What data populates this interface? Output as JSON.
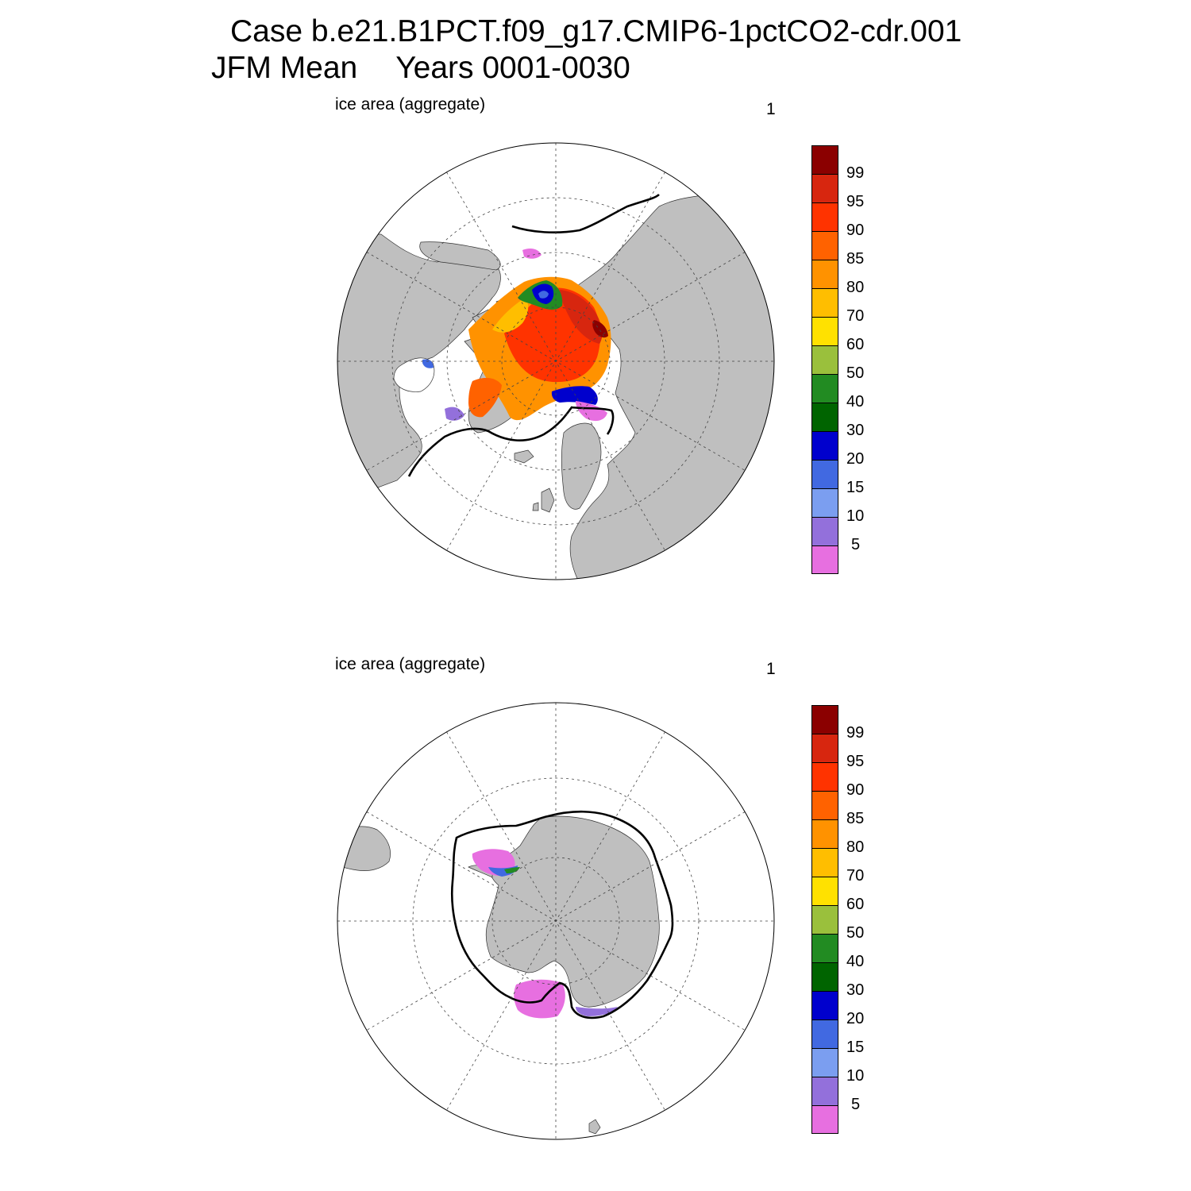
{
  "header": {
    "case_title": "Case b.e21.B1PCT.f09_g17.CMIP6-1pctCO2-cdr.001",
    "season": "JFM Mean",
    "years": "Years 0001-0030"
  },
  "panels": [
    {
      "id": "north",
      "hemisphere": "Northern Hemisphere",
      "label": "ice area  (aggregate)",
      "index_label": "1"
    },
    {
      "id": "south",
      "hemisphere": "Southern Hemisphere",
      "label": "ice area  (aggregate)",
      "index_label": "1"
    }
  ],
  "colorbar": {
    "labels": [
      "99",
      "95",
      "90",
      "85",
      "80",
      "70",
      "60",
      "50",
      "40",
      "30",
      "20",
      "15",
      "10",
      "5"
    ],
    "colors": [
      "#8b0000",
      "#d7260f",
      "#ff3300",
      "#ff6200",
      "#ff9200",
      "#ffbe00",
      "#ffe100",
      "#9ac03c",
      "#228b22",
      "#006400",
      "#0000cd",
      "#4169e1",
      "#7b9ef0",
      "#9370db",
      "#e76fe0"
    ]
  },
  "map_style": {
    "land_color": "#bfbfbf",
    "ocean_color": "#ffffff",
    "observed_edge_color": "#000000"
  }
}
